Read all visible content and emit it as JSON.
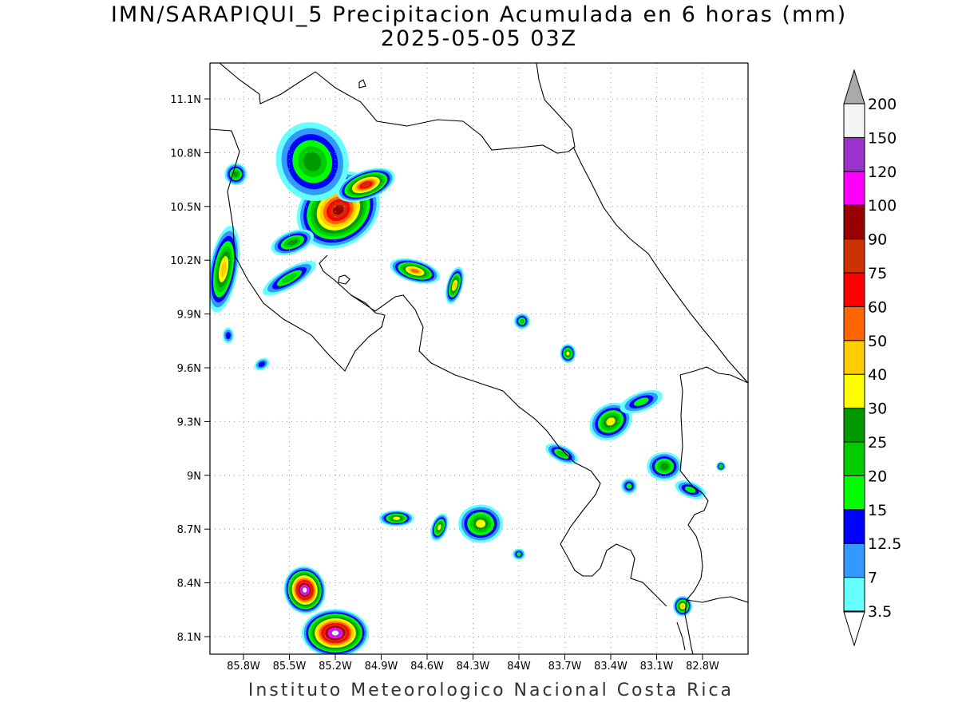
{
  "title": {
    "line1": "IMN/SARAPIQUI_5 Precipitacion Acumulada en 6 horas (mm)",
    "line2": "2025-05-05 03Z"
  },
  "footer": "Instituto Meteorologico Nacional Costa Rica",
  "axes": {
    "lat_ticks": [
      "11.1N",
      "10.8N",
      "10.5N",
      "10.2N",
      "9.9N",
      "9.6N",
      "9.3N",
      "9N",
      "8.7N",
      "8.4N",
      "8.1N"
    ],
    "lon_ticks": [
      "85.8W",
      "85.5W",
      "85.2W",
      "84.9W",
      "84.6W",
      "84.3W",
      "84W",
      "83.7W",
      "83.4W",
      "83.1W",
      "82.8W"
    ],
    "grid": "dotted"
  },
  "colorbar": {
    "levels": [
      "3.5",
      "7",
      "12.5",
      "15",
      "20",
      "25",
      "30",
      "40",
      "50",
      "60",
      "75",
      "90",
      "100",
      "120",
      "150",
      "200"
    ],
    "colors": [
      "#66ffff",
      "#3399ff",
      "#0000ff",
      "#00ff00",
      "#00cc00",
      "#009900",
      "#ffff00",
      "#ffcc00",
      "#ff6600",
      "#ff0000",
      "#cc3300",
      "#990000",
      "#ff00ff",
      "#9933cc",
      "#f5f5f5",
      "#aaaaaa"
    ],
    "extend": "both"
  },
  "precip_cells": [
    {
      "lon": -85.18,
      "lat": 10.48,
      "level": 90,
      "rx": 55,
      "ry": 45,
      "rot": -35
    },
    {
      "lon": -85.35,
      "lat": 10.75,
      "level": 25,
      "rx": 45,
      "ry": 50,
      "rot": -20
    },
    {
      "lon": -85.0,
      "lat": 10.62,
      "level": 75,
      "rx": 38,
      "ry": 18,
      "rot": -20
    },
    {
      "lon": -85.85,
      "lat": 10.68,
      "level": 25,
      "rx": 14,
      "ry": 14,
      "rot": 0
    },
    {
      "lon": -85.93,
      "lat": 10.15,
      "level": 40,
      "rx": 18,
      "ry": 55,
      "rot": 10
    },
    {
      "lon": -85.48,
      "lat": 10.3,
      "level": 25,
      "rx": 28,
      "ry": 14,
      "rot": -20
    },
    {
      "lon": -85.5,
      "lat": 10.1,
      "level": 20,
      "rx": 38,
      "ry": 12,
      "rot": -30
    },
    {
      "lon": -84.68,
      "lat": 10.14,
      "level": 50,
      "rx": 32,
      "ry": 14,
      "rot": 15
    },
    {
      "lon": -84.42,
      "lat": 10.06,
      "level": 40,
      "rx": 10,
      "ry": 24,
      "rot": 15
    },
    {
      "lon": -85.9,
      "lat": 9.78,
      "level": 12.5,
      "rx": 7,
      "ry": 10,
      "rot": 0
    },
    {
      "lon": -85.68,
      "lat": 9.62,
      "level": 12.5,
      "rx": 10,
      "ry": 7,
      "rot": -30
    },
    {
      "lon": -83.98,
      "lat": 9.86,
      "level": 20,
      "rx": 10,
      "ry": 10,
      "rot": 0
    },
    {
      "lon": -83.68,
      "lat": 9.68,
      "level": 30,
      "rx": 10,
      "ry": 12,
      "rot": 0
    },
    {
      "lon": -83.4,
      "lat": 9.3,
      "level": 30,
      "rx": 28,
      "ry": 22,
      "rot": -30
    },
    {
      "lon": -83.2,
      "lat": 9.41,
      "level": 15,
      "rx": 28,
      "ry": 12,
      "rot": -20
    },
    {
      "lon": -83.72,
      "lat": 9.12,
      "level": 20,
      "rx": 22,
      "ry": 10,
      "rot": 25
    },
    {
      "lon": -83.05,
      "lat": 9.05,
      "level": 25,
      "rx": 22,
      "ry": 18,
      "rot": 0
    },
    {
      "lon": -82.88,
      "lat": 8.92,
      "level": 15,
      "rx": 20,
      "ry": 10,
      "rot": 20
    },
    {
      "lon": -83.28,
      "lat": 8.94,
      "level": 15,
      "rx": 10,
      "ry": 10,
      "rot": 0
    },
    {
      "lon": -82.68,
      "lat": 9.05,
      "level": 20,
      "rx": 6,
      "ry": 6,
      "rot": 0
    },
    {
      "lon": -84.8,
      "lat": 8.76,
      "level": 30,
      "rx": 22,
      "ry": 10,
      "rot": 0
    },
    {
      "lon": -84.52,
      "lat": 8.71,
      "level": 30,
      "rx": 10,
      "ry": 18,
      "rot": 20
    },
    {
      "lon": -84.25,
      "lat": 8.73,
      "level": 30,
      "rx": 28,
      "ry": 24,
      "rot": 0
    },
    {
      "lon": -84.0,
      "lat": 8.56,
      "level": 15,
      "rx": 8,
      "ry": 7,
      "rot": 0
    },
    {
      "lon": -85.4,
      "lat": 8.36,
      "level": 150,
      "rx": 26,
      "ry": 30,
      "rot": -10
    },
    {
      "lon": -85.2,
      "lat": 8.12,
      "level": 150,
      "rx": 42,
      "ry": 30,
      "rot": 0
    },
    {
      "lon": -82.93,
      "lat": 8.27,
      "level": 40,
      "rx": 12,
      "ry": 13,
      "rot": 0
    }
  ],
  "marks": {
    "cell_groups": [
      0,
      1,
      2,
      3,
      4,
      5,
      6,
      7,
      8,
      9,
      10,
      11,
      12,
      13,
      14,
      15,
      16,
      17,
      18,
      19,
      20,
      21,
      22,
      23,
      24,
      25,
      26
    ],
    "lat_tick_ids": [
      0,
      1,
      2,
      3,
      4,
      5,
      6,
      7,
      8,
      9,
      10
    ],
    "lon_tick_ids": [
      0,
      1,
      2,
      3,
      4,
      5,
      6,
      7,
      8,
      9,
      10
    ],
    "colorbar_ids": [
      0,
      1,
      2,
      3,
      4,
      5,
      6,
      7,
      8,
      9,
      10,
      11,
      12,
      13,
      14,
      15
    ]
  }
}
